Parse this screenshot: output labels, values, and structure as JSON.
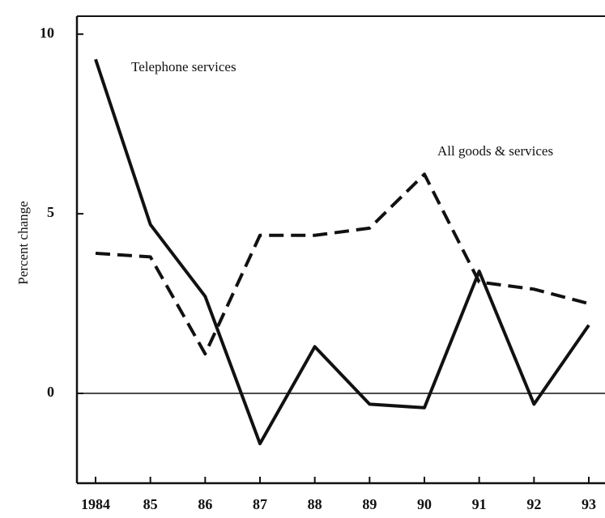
{
  "chart_data": {
    "type": "line",
    "y_label": "Percent change",
    "categories": [
      "1984",
      "85",
      "86",
      "87",
      "88",
      "89",
      "90",
      "91",
      "92",
      "93"
    ],
    "series": [
      {
        "name": "Telephone services",
        "color": "#111111",
        "dash": false,
        "values": [
          9.3,
          4.7,
          2.7,
          -1.4,
          1.3,
          -0.3,
          -0.4,
          3.4,
          -0.3,
          1.9
        ]
      },
      {
        "name": "All goods & services",
        "color": "#111111",
        "dash": true,
        "values": [
          3.9,
          3.8,
          1.1,
          4.4,
          4.4,
          4.6,
          6.1,
          3.1,
          2.9,
          2.5
        ]
      }
    ],
    "ylim": [
      -2.5,
      10.5
    ],
    "yticks": [
      0,
      5,
      10
    ],
    "grid": false
  }
}
